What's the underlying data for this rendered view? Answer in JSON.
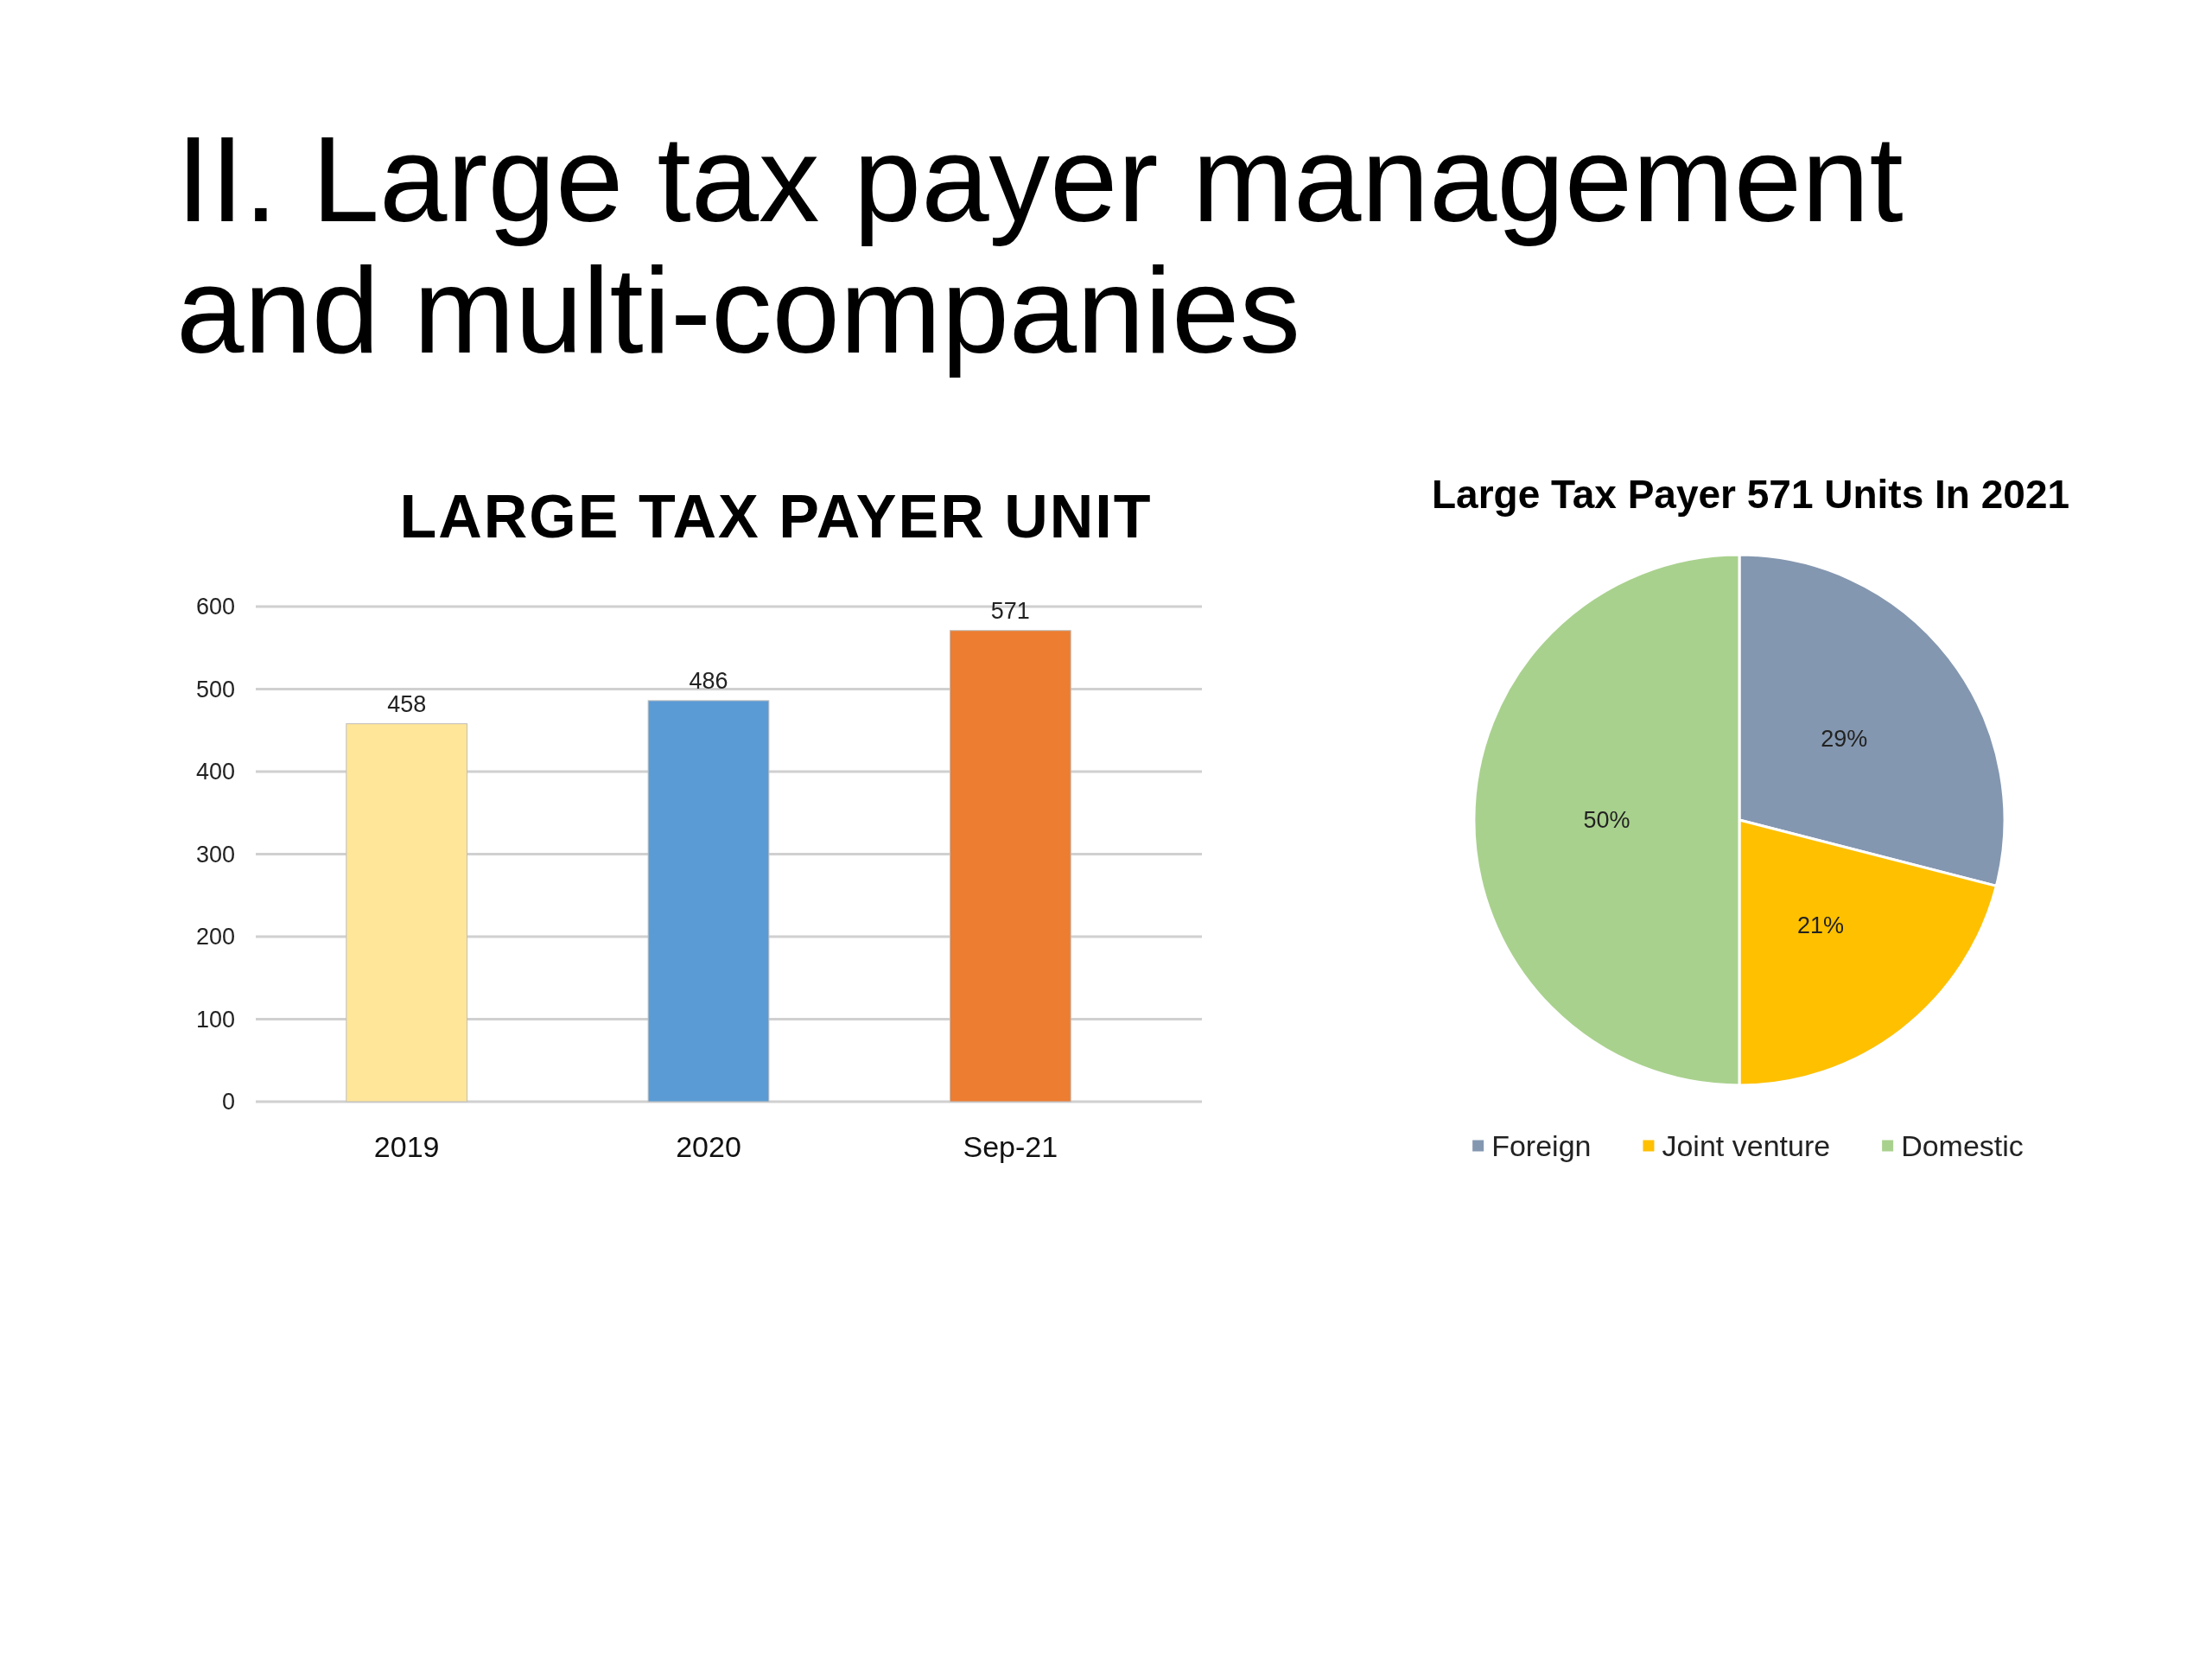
{
  "chart_data": [
    {
      "type": "other",
      "title": "II. Large tax payer management and multi-companies"
    },
    {
      "type": "bar",
      "title": "LARGE TAX PAYER UNIT",
      "categories": [
        "2019",
        "2020",
        "Sep-21"
      ],
      "values": [
        458,
        486,
        571
      ],
      "colors": [
        "#ffe699",
        "#5b9bd5",
        "#ed7d31"
      ],
      "ylim": [
        0,
        600
      ],
      "yticks": [
        0,
        100,
        200,
        300,
        400,
        500,
        600
      ],
      "grid": true,
      "data_labels": true
    },
    {
      "type": "pie",
      "title": "Large Tax Payer 571 Units In 2021",
      "categories": [
        "Foreign",
        "Joint venture",
        "Domestic"
      ],
      "values": [
        29,
        21,
        50
      ],
      "colors": [
        "#8497b0",
        "#ffc000",
        "#a9d18e"
      ],
      "value_labels": [
        "29%",
        "21%",
        "50%"
      ],
      "legend": "bottom"
    }
  ]
}
